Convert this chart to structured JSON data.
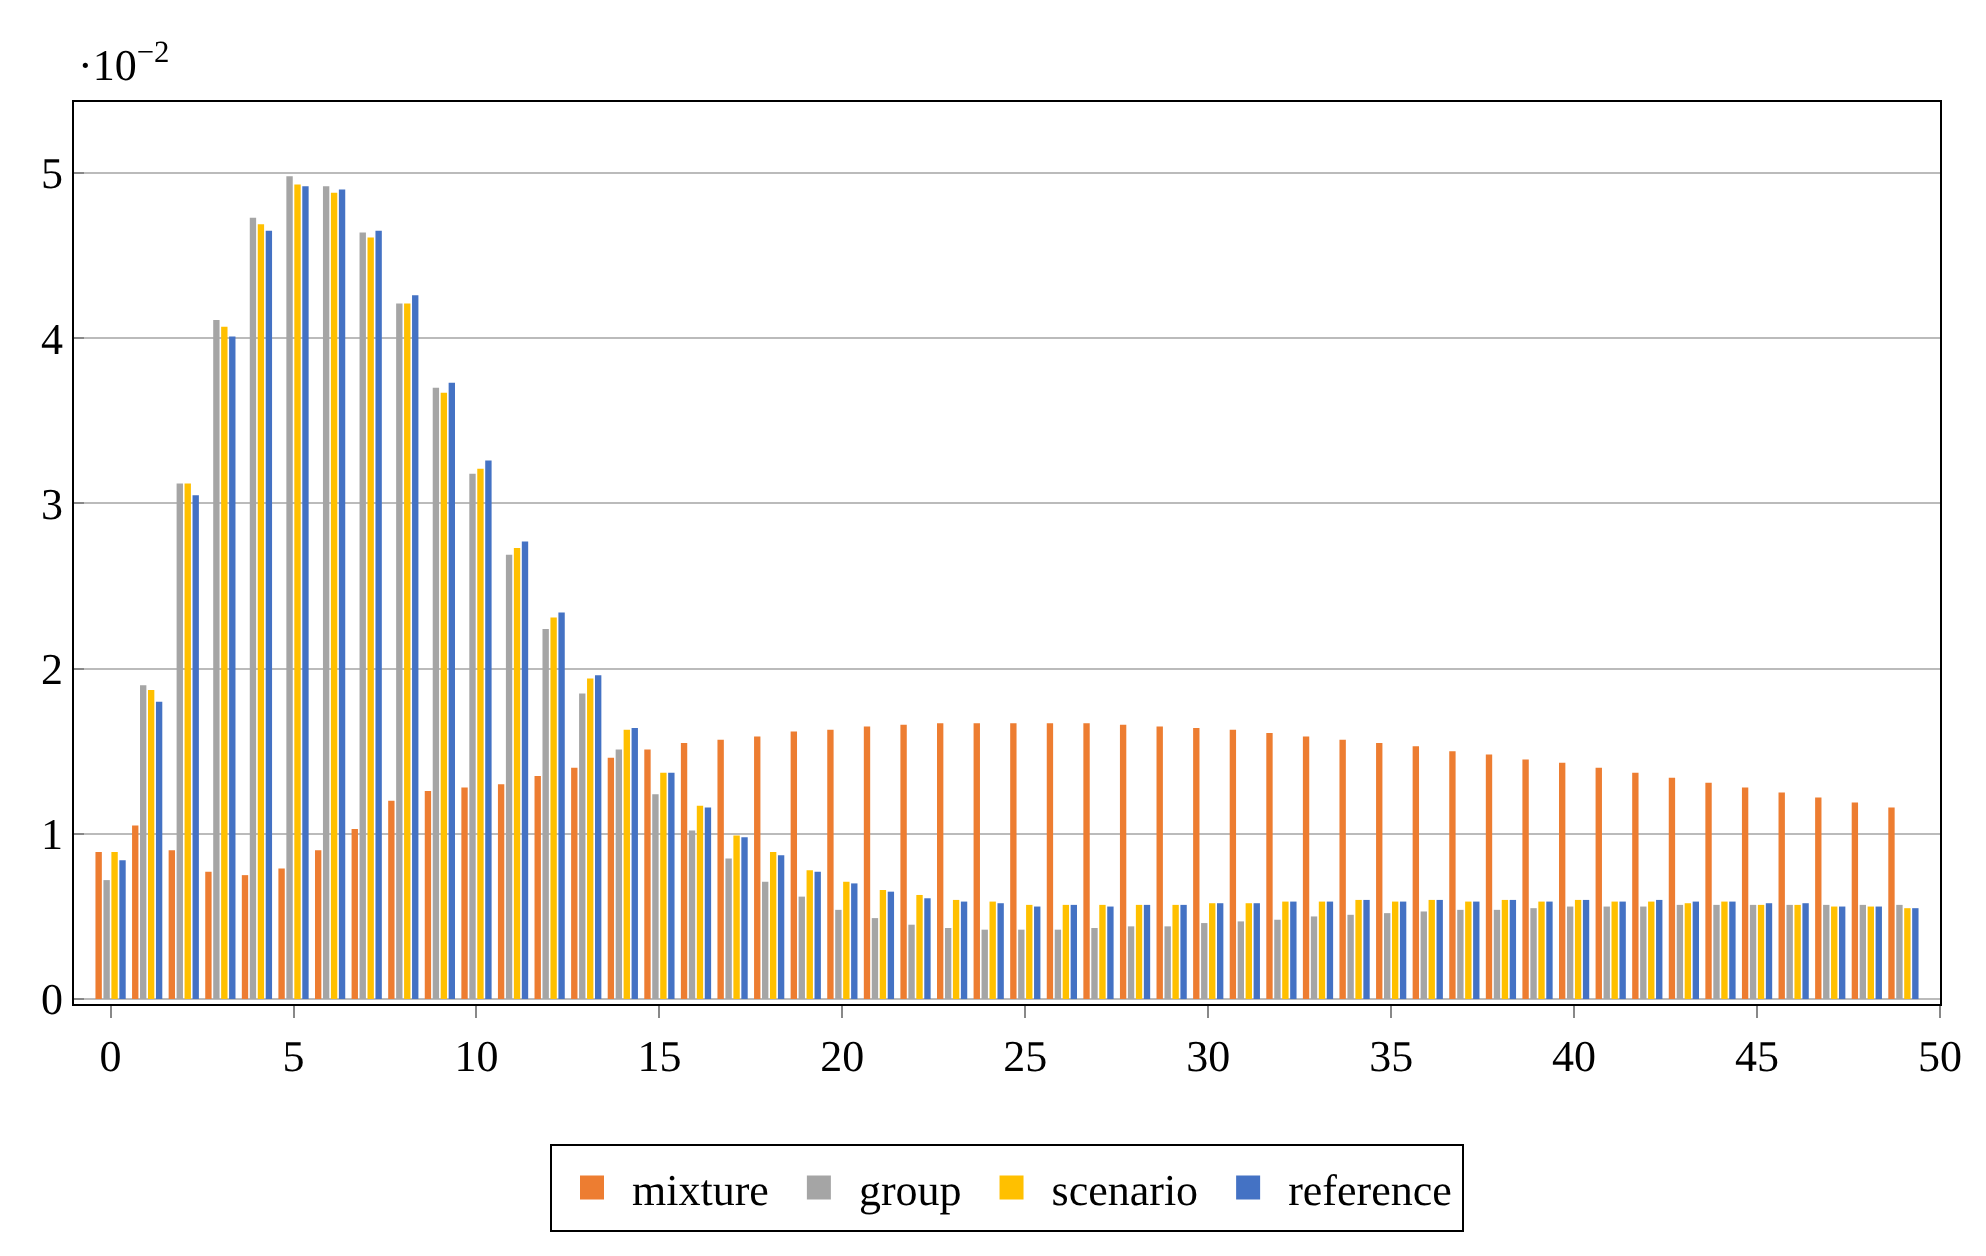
{
  "chart_data": {
    "type": "bar",
    "x": [
      0,
      1,
      2,
      3,
      4,
      5,
      6,
      7,
      8,
      9,
      10,
      11,
      12,
      13,
      14,
      15,
      16,
      17,
      18,
      19,
      20,
      21,
      22,
      23,
      24,
      25,
      26,
      27,
      28,
      29,
      30,
      31,
      32,
      33,
      34,
      35,
      36,
      37,
      38,
      39,
      40,
      41,
      42,
      43,
      44,
      45,
      46,
      47,
      48,
      49
    ],
    "series": [
      {
        "name": "mixture",
        "color": "#ed7d31",
        "values": [
          0.89,
          1.05,
          0.9,
          0.77,
          0.75,
          0.79,
          0.9,
          1.03,
          1.2,
          1.26,
          1.28,
          1.3,
          1.35,
          1.4,
          1.46,
          1.51,
          1.55,
          1.57,
          1.59,
          1.62,
          1.63,
          1.65,
          1.66,
          1.67,
          1.67,
          1.67,
          1.67,
          1.67,
          1.66,
          1.65,
          1.64,
          1.63,
          1.61,
          1.59,
          1.57,
          1.55,
          1.53,
          1.5,
          1.48,
          1.45,
          1.43,
          1.4,
          1.37,
          1.34,
          1.31,
          1.28,
          1.25,
          1.22,
          1.19,
          1.16
        ]
      },
      {
        "name": "group",
        "color": "#a5a5a5",
        "values": [
          0.72,
          1.9,
          3.12,
          4.11,
          4.73,
          4.98,
          4.92,
          4.64,
          4.21,
          3.7,
          3.18,
          2.69,
          2.24,
          1.85,
          1.51,
          1.24,
          1.02,
          0.85,
          0.71,
          0.62,
          0.54,
          0.49,
          0.45,
          0.43,
          0.42,
          0.42,
          0.42,
          0.43,
          0.44,
          0.44,
          0.46,
          0.47,
          0.48,
          0.5,
          0.51,
          0.52,
          0.53,
          0.54,
          0.54,
          0.55,
          0.56,
          0.56,
          0.56,
          0.57,
          0.57,
          0.57,
          0.57,
          0.57,
          0.57,
          0.57
        ]
      },
      {
        "name": "scenario",
        "color": "#ffc000",
        "values": [
          0.89,
          1.87,
          3.12,
          4.07,
          4.69,
          4.93,
          4.88,
          4.61,
          4.21,
          3.67,
          3.21,
          2.73,
          2.31,
          1.94,
          1.63,
          1.37,
          1.17,
          0.99,
          0.89,
          0.78,
          0.71,
          0.66,
          0.63,
          0.6,
          0.59,
          0.57,
          0.57,
          0.57,
          0.57,
          0.57,
          0.58,
          0.58,
          0.59,
          0.59,
          0.6,
          0.59,
          0.6,
          0.59,
          0.6,
          0.59,
          0.6,
          0.59,
          0.59,
          0.58,
          0.59,
          0.57,
          0.57,
          0.56,
          0.56,
          0.55
        ]
      },
      {
        "name": "reference",
        "color": "#4472c4",
        "values": [
          0.84,
          1.8,
          3.05,
          4.01,
          4.65,
          4.92,
          4.9,
          4.65,
          4.26,
          3.73,
          3.26,
          2.77,
          2.34,
          1.96,
          1.64,
          1.37,
          1.16,
          0.98,
          0.87,
          0.77,
          0.7,
          0.65,
          0.61,
          0.59,
          0.58,
          0.56,
          0.57,
          0.56,
          0.57,
          0.57,
          0.58,
          0.58,
          0.59,
          0.59,
          0.6,
          0.59,
          0.6,
          0.59,
          0.6,
          0.59,
          0.6,
          0.59,
          0.6,
          0.59,
          0.59,
          0.58,
          0.58,
          0.56,
          0.56,
          0.55
        ]
      }
    ],
    "xlim": [
      -1,
      50
    ],
    "xticks": [
      0,
      5,
      10,
      15,
      20,
      25,
      30,
      35,
      40,
      45,
      50
    ],
    "ylim": [
      -0.03,
      5.43
    ],
    "yticks": [
      0,
      1,
      2,
      3,
      4,
      5
    ],
    "grid": "y",
    "legend": "bottom",
    "annotations": [
      "·10$^{−2}$"
    ]
  }
}
